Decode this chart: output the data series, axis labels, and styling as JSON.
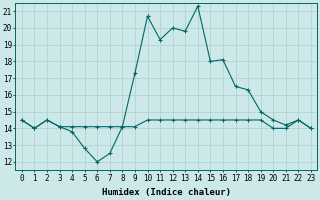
{
  "xlabel": "Humidex (Indice chaleur)",
  "x": [
    0,
    1,
    2,
    3,
    4,
    5,
    6,
    7,
    8,
    9,
    10,
    11,
    12,
    13,
    14,
    15,
    16,
    17,
    18,
    19,
    20,
    21,
    22,
    23
  ],
  "y_humidex": [
    14.5,
    14.0,
    14.5,
    14.1,
    13.8,
    12.8,
    12.0,
    12.5,
    14.1,
    17.3,
    20.7,
    19.3,
    20.0,
    19.8,
    21.3,
    18.0,
    18.1,
    16.5,
    16.3,
    15.0,
    14.5,
    14.2,
    14.5,
    14.0
  ],
  "y_flat": [
    14.5,
    14.0,
    14.5,
    14.1,
    14.1,
    14.1,
    14.1,
    14.1,
    14.1,
    14.1,
    14.5,
    14.5,
    14.5,
    14.5,
    14.5,
    14.5,
    14.5,
    14.5,
    14.5,
    14.5,
    14.0,
    14.0,
    14.5,
    14.0
  ],
  "line_color": "#006666",
  "bg_color": "#cce8e8",
  "grid_color": "#aacfcf",
  "ylim": [
    11.5,
    21.5
  ],
  "yticks": [
    12,
    13,
    14,
    15,
    16,
    17,
    18,
    19,
    20,
    21
  ],
  "tick_fontsize": 5.5,
  "label_fontsize": 6.5
}
